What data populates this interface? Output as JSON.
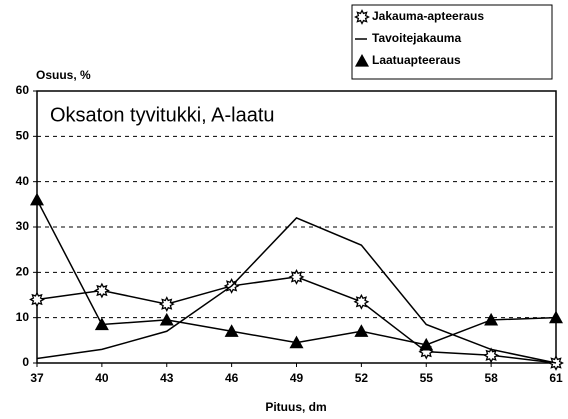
{
  "chart_data": {
    "type": "line",
    "title": "Oksaton tyvitukki, A-laatu",
    "y_label": "Osuus, %",
    "x_label": "Pituus, dm",
    "x": [
      37,
      40,
      43,
      46,
      49,
      52,
      55,
      58,
      61
    ],
    "series": [
      {
        "name": "Jakauma-apteeraus",
        "color": "#000000",
        "marker": "star",
        "values": [
          14,
          16,
          13,
          17,
          19,
          13.5,
          2.5,
          1.7,
          0
        ]
      },
      {
        "name": "Tavoitejakauma",
        "color": "#000000",
        "marker": "none",
        "values": [
          1,
          3,
          7,
          17,
          32,
          26,
          8.5,
          3,
          0
        ]
      },
      {
        "name": "Laatuapteeraus",
        "color": "#000000",
        "marker": "triangle",
        "values": [
          36,
          8.5,
          9.5,
          7,
          4.5,
          7,
          4,
          9.5,
          10
        ]
      }
    ],
    "xlim": [
      37,
      61
    ],
    "xticks": [
      37,
      40,
      43,
      46,
      49,
      52,
      55,
      58,
      61
    ],
    "ylim": [
      0,
      60
    ],
    "yticks": [
      0,
      10,
      20,
      30,
      40,
      50,
      60
    ],
    "grid": true,
    "legend": "top-right"
  }
}
